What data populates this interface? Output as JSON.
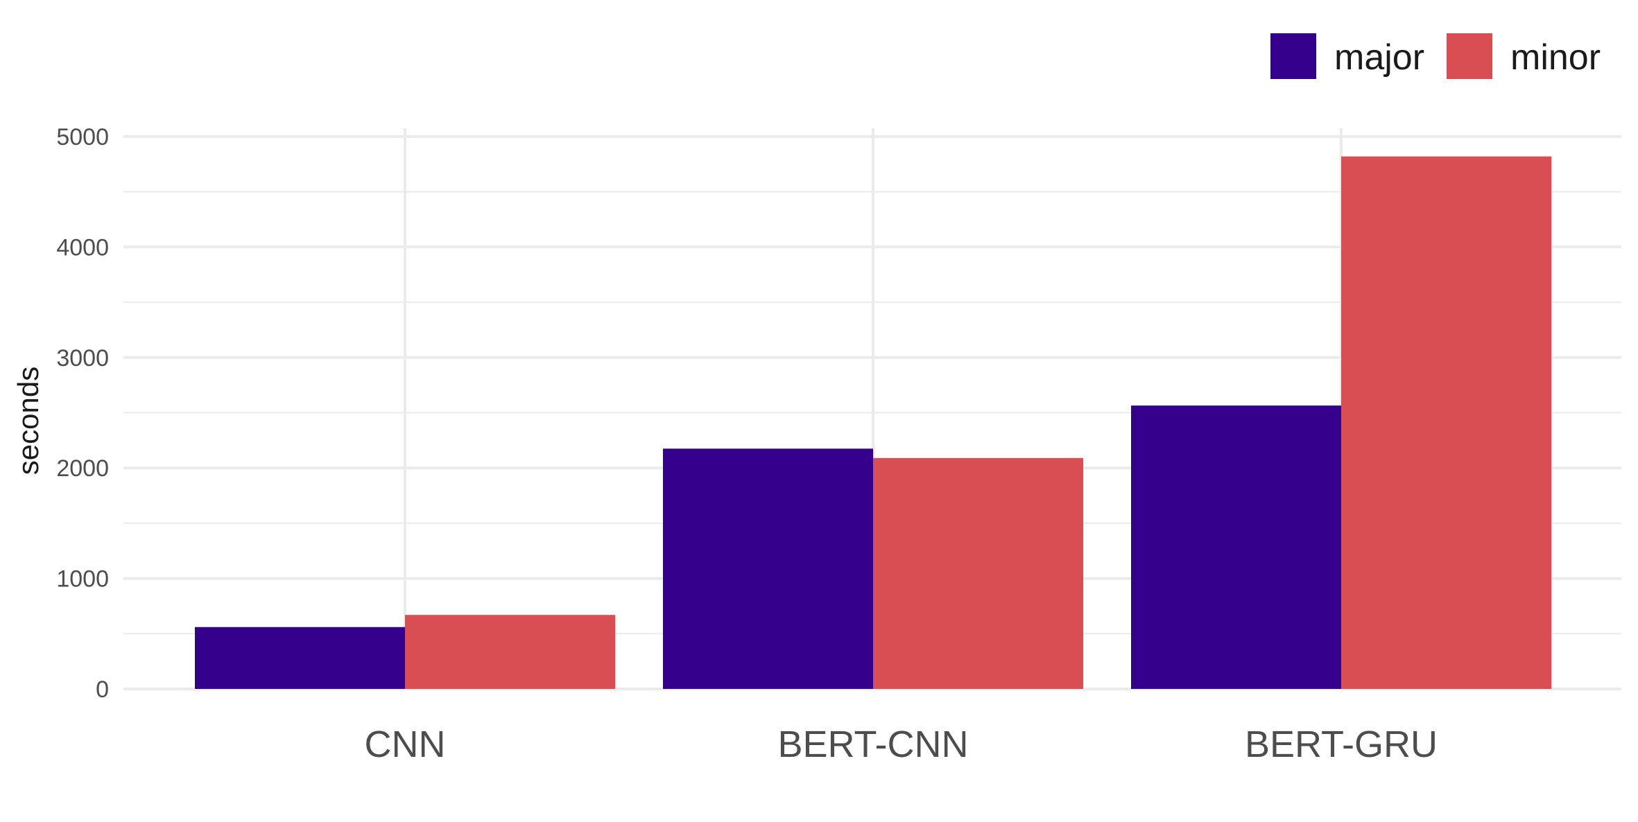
{
  "chart_data": {
    "type": "bar",
    "categories": [
      "CNN",
      "BERT-CNN",
      "BERT-GRU"
    ],
    "series": [
      {
        "name": "major",
        "color": "#35008c",
        "values": [
          560,
          2175,
          2565
        ]
      },
      {
        "name": "minor",
        "color": "#d94e52",
        "values": [
          670,
          2090,
          4820
        ]
      }
    ],
    "ylabel": "seconds",
    "xlabel": "",
    "ylim": [
      0,
      5000
    ],
    "yticks": [
      0,
      1000,
      2000,
      3000,
      4000,
      5000
    ],
    "grid": true,
    "legend_position": "top-right"
  }
}
